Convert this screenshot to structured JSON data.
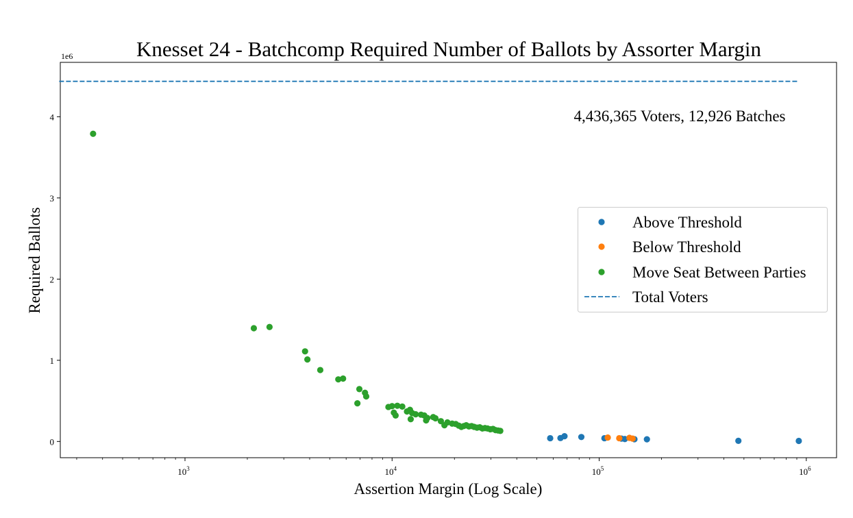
{
  "chart_data": {
    "type": "scatter",
    "title": "Knesset 24 - Batchcomp Required Number of Ballots by Assorter Margin",
    "xlabel": "Assertion Margin (Log Scale)",
    "ylabel": "Required Ballots",
    "x_scale": "log",
    "xlim": [
      250,
      1400000
    ],
    "ylim": [
      -200000,
      4670000
    ],
    "x_ticks": [
      {
        "value": 1000,
        "base": "10",
        "exp": "3"
      },
      {
        "value": 10000,
        "base": "10",
        "exp": "4"
      },
      {
        "value": 100000,
        "base": "10",
        "exp": "5"
      },
      {
        "value": 1000000,
        "base": "10",
        "exp": "6"
      }
    ],
    "y_ticks": [
      {
        "value": 0,
        "label": "0"
      },
      {
        "value": 1000000,
        "label": "1"
      },
      {
        "value": 2000000,
        "label": "2"
      },
      {
        "value": 3000000,
        "label": "3"
      },
      {
        "value": 4000000,
        "label": "4"
      }
    ],
    "y_offset_label": "1e6",
    "annotation": "4,436,365 Voters, 12,926 Batches",
    "total_voters": 4436365,
    "grid": false,
    "legend_position": "center-right",
    "colors": {
      "above": "#1f77b4",
      "below": "#ff7f0e",
      "move": "#2ca02c",
      "total": "#1f77b4"
    },
    "series": [
      {
        "name": "Above Threshold",
        "color": "#1f77b4",
        "x": [
          58000,
          65000,
          68000,
          82000,
          106000,
          128000,
          133000,
          148000,
          170000,
          470000,
          920000
        ],
        "y": [
          40000,
          42000,
          65000,
          55000,
          40000,
          35000,
          30000,
          28000,
          27000,
          8000,
          7000
        ]
      },
      {
        "name": "Below Threshold",
        "color": "#ff7f0e",
        "x": [
          110000,
          125000,
          140000,
          145000
        ],
        "y": [
          48000,
          40000,
          45000,
          35000
        ]
      },
      {
        "name": "Move Seat Between Parties",
        "color": "#2ca02c",
        "x": [
          360,
          2150,
          2560,
          3800,
          3900,
          4500,
          5500,
          5800,
          6800,
          6950,
          7400,
          7500,
          9600,
          10000,
          10200,
          10400,
          10600,
          11200,
          11800,
          12200,
          12300,
          12500,
          13000,
          13800,
          14300,
          14600,
          14800,
          15800,
          16200,
          17200,
          17900,
          18500,
          19500,
          20300,
          21000,
          21600,
          22200,
          22800,
          23500,
          24200,
          24900,
          25700,
          26500,
          27300,
          28100,
          28900,
          29800,
          30700,
          31600,
          32500,
          33300
        ],
        "y": [
          3790000,
          1395000,
          1410000,
          1110000,
          1010000,
          880000,
          765000,
          775000,
          470000,
          645000,
          600000,
          555000,
          425000,
          435000,
          355000,
          320000,
          440000,
          430000,
          370000,
          390000,
          275000,
          350000,
          335000,
          330000,
          320000,
          260000,
          290000,
          300000,
          285000,
          250000,
          200000,
          235000,
          220000,
          215000,
          195000,
          180000,
          190000,
          200000,
          185000,
          190000,
          180000,
          170000,
          175000,
          160000,
          165000,
          160000,
          150000,
          155000,
          140000,
          135000,
          130000
        ]
      },
      {
        "name": "Total Voters",
        "color": "#1f77b4",
        "style": "dashed",
        "y": 4436365
      }
    ]
  }
}
